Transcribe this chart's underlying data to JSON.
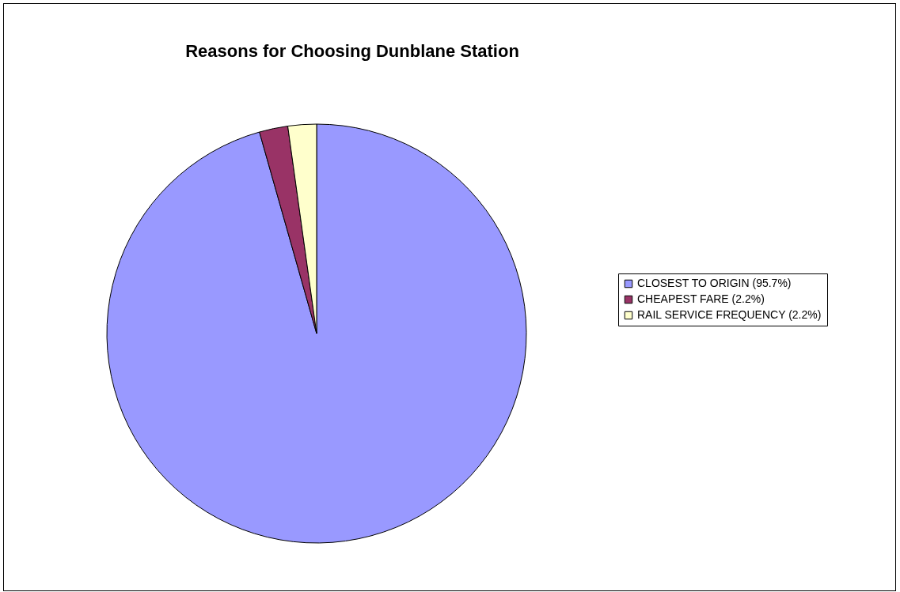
{
  "chart_data": {
    "type": "pie",
    "title": "Reasons for Choosing Dunblane Station",
    "categories": [
      "CLOSEST TO ORIGIN (95.7%)",
      "CHEAPEST FARE (2.2%)",
      "RAIL SERVICE FREQUENCY (2.2%)"
    ],
    "values": [
      95.7,
      2.2,
      2.2
    ],
    "colors": [
      "#9999ff",
      "#993366",
      "#ffffcc"
    ],
    "legend": "right"
  }
}
